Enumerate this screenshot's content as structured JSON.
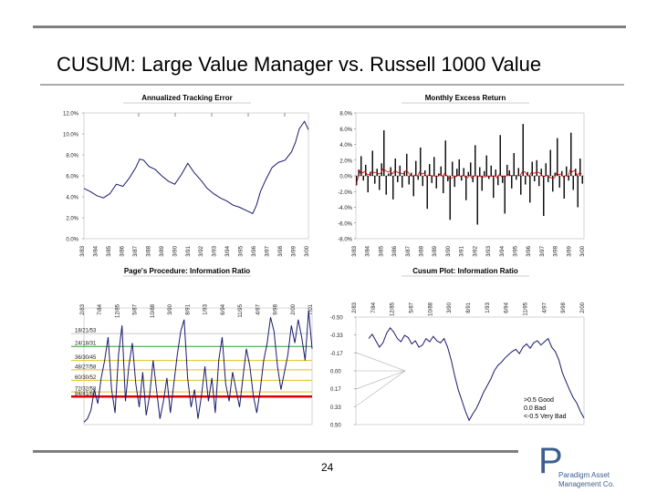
{
  "title": "CUSUM: Large Value Manager vs. Russell 1000 Value",
  "page_number": "24",
  "logo": {
    "line1": "Paradigm Asset",
    "line2": "Management Co."
  },
  "colors": {
    "rule": "#7f7f7f",
    "series": "#1a1a6e",
    "red": "#cc0000",
    "logo": "#3d5f8e"
  },
  "chart_data": [
    {
      "type": "line",
      "title": "Annualized Tracking Error",
      "yticks": [
        "12.0%",
        "10.0%",
        "8.0%",
        "6.0%",
        "4.0%",
        "2.0%",
        "0.0%"
      ],
      "ylim": [
        0,
        12
      ],
      "xticks": [
        "3/83",
        "3/84",
        "3/85",
        "3/86",
        "3/87",
        "3/88",
        "3/89",
        "3/90",
        "3/91",
        "3/92",
        "3/93",
        "3/94",
        "3/95",
        "3/96",
        "3/97",
        "3/98",
        "3/99",
        "3/00"
      ],
      "x": [
        0,
        0.5,
        1,
        1.5,
        2,
        2.5,
        3,
        3.5,
        4,
        4.3,
        4.6,
        5,
        5.5,
        6,
        6.5,
        7,
        7.5,
        8,
        8.5,
        9,
        9.5,
        10,
        10.5,
        11,
        11.5,
        12,
        12.5,
        13,
        13.3,
        13.6,
        14,
        14.5,
        15,
        15.5,
        16,
        16.3,
        16.6,
        17,
        17.3
      ],
      "values": [
        4.8,
        4.5,
        4.1,
        3.9,
        4.3,
        5.2,
        5.0,
        5.8,
        6.8,
        7.6,
        7.5,
        6.9,
        6.6,
        6.0,
        5.5,
        5.2,
        6.1,
        7.2,
        6.3,
        5.6,
        4.8,
        4.3,
        3.9,
        3.6,
        3.2,
        3.0,
        2.7,
        2.4,
        3.2,
        4.5,
        5.6,
        6.8,
        7.3,
        7.5,
        8.3,
        9.2,
        10.5,
        11.2,
        10.4
      ]
    },
    {
      "type": "bar",
      "title": "Monthly Excess Return",
      "yticks": [
        "8.0%",
        "6.0%",
        "4.0%",
        "2.0%",
        "0.0%",
        "-2.0%",
        "-4.0%",
        "-6.0%",
        "-8.0%"
      ],
      "ylim": [
        -8,
        8
      ],
      "xticks": [
        "3/83",
        "3/84",
        "3/85",
        "3/86",
        "3/87",
        "3/88",
        "3/89",
        "3/90",
        "3/91",
        "3/92",
        "3/93",
        "3/94",
        "3/95",
        "3/96",
        "3/97",
        "3/98",
        "3/99",
        "3/00"
      ],
      "x_range": [
        0,
        17.3
      ],
      "values": [
        -1.2,
        0.8,
        2.5,
        -0.6,
        1.4,
        -2.1,
        0.5,
        3.2,
        -1.0,
        0.9,
        -1.8,
        1.6,
        5.8,
        -2.4,
        0.3,
        1.1,
        -3.0,
        2.2,
        -0.8,
        1.3,
        -1.5,
        0.6,
        2.8,
        -1.1,
        0.4,
        -2.6,
        1.9,
        -0.5,
        3.6,
        -1.3,
        0.7,
        -4.2,
        1.5,
        -0.9,
        2.4,
        -1.6,
        0.3,
        1.2,
        -2.2,
        4.5,
        -0.7,
        -5.6,
        1.8,
        -1.4,
        0.9,
        2.1,
        -0.6,
        1.0,
        -3.1,
        0.5,
        1.7,
        -0.8,
        3.9,
        -6.2,
        1.1,
        -1.9,
        0.6,
        2.6,
        -0.4,
        1.3,
        -2.8,
        0.8,
        -1.2,
        5.2,
        -0.9,
        -4.8,
        1.4,
        0.7,
        -1.6,
        2.9,
        -0.5,
        1.0,
        -2.4,
        6.6,
        -1.1,
        0.5,
        -3.4,
        1.8,
        -0.7,
        2.0,
        -1.3,
        0.9,
        -5.1,
        1.6,
        -0.8,
        3.3,
        -2.0,
        0.4,
        4.8,
        -1.5,
        0.6,
        -2.9,
        1.2,
        -0.6,
        5.5,
        -1.8,
        0.9,
        -4.0,
        2.2,
        -1.0
      ]
    },
    {
      "type": "line",
      "title": "Page's Procedure: Information Ratio",
      "xticks": [
        "2/83",
        "7/84",
        "12/85",
        "5/87",
        "10/88",
        "3/90",
        "8/91",
        "1/93",
        "6/94",
        "11/95",
        "4/97",
        "9/98",
        "2/00",
        "7/01"
      ],
      "x_range": [
        0,
        13
      ],
      "ylim": [
        0,
        1
      ],
      "threshold_labels": [
        "18/21/53",
        "24/18/31",
        "36/30/45",
        "48/27/58",
        "60/30/52",
        "72/32/58",
        "84/41/66"
      ],
      "threshold_colors": [
        "#c8c8c8",
        "#2e9e2e",
        "#e0c020",
        "#e0c020",
        "#e0c020",
        "#e0c020",
        "#dd0000"
      ],
      "threshold_levels": [
        0.22,
        0.33,
        0.45,
        0.53,
        0.62,
        0.72,
        0.76
      ],
      "values": [
        0.02,
        0.05,
        0.12,
        0.3,
        0.18,
        0.4,
        0.55,
        0.75,
        0.3,
        0.1,
        0.6,
        0.85,
        0.2,
        0.5,
        0.7,
        0.35,
        0.15,
        0.45,
        0.08,
        0.25,
        0.55,
        0.3,
        0.05,
        0.2,
        0.4,
        0.1,
        0.35,
        0.6,
        0.8,
        0.9,
        0.4,
        0.15,
        0.3,
        0.05,
        0.25,
        0.5,
        0.2,
        0.4,
        0.1,
        0.55,
        0.75,
        0.35,
        0.2,
        0.45,
        0.3,
        0.15,
        0.4,
        0.65,
        0.5,
        0.25,
        0.1,
        0.3,
        0.55,
        0.7,
        0.92,
        0.8,
        0.5,
        0.3,
        0.45,
        0.6,
        0.85,
        0.7,
        0.9,
        0.75,
        0.55,
        0.98,
        0.65
      ]
    },
    {
      "type": "line",
      "title": "Cusum Plot: Information Ratio",
      "yticks": [
        "-0.50",
        "-0.33",
        "-0.17",
        "0.00",
        "0.17",
        "0.33",
        "0.50"
      ],
      "ylim": [
        -0.5,
        0.5
      ],
      "xticks": [
        "2/83",
        "7/84",
        "12/85",
        "5/87",
        "10/88",
        "3/90",
        "8/91",
        "1/93",
        "6/94",
        "11/95",
        "4/97",
        "9/98",
        "2/00"
      ],
      "x_range": [
        0,
        12.2
      ],
      "values": [
        -0.3,
        -0.34,
        -0.28,
        -0.22,
        -0.26,
        -0.35,
        -0.4,
        -0.36,
        -0.3,
        -0.27,
        -0.33,
        -0.31,
        -0.25,
        -0.28,
        -0.22,
        -0.24,
        -0.3,
        -0.27,
        -0.32,
        -0.28,
        -0.26,
        -0.3,
        -0.22,
        -0.1,
        0.05,
        0.18,
        0.28,
        0.38,
        0.46,
        0.4,
        0.35,
        0.28,
        0.2,
        0.14,
        0.08,
        0.0,
        -0.05,
        -0.08,
        -0.12,
        -0.15,
        -0.18,
        -0.2,
        -0.16,
        -0.22,
        -0.25,
        -0.21,
        -0.26,
        -0.28,
        -0.24,
        -0.27,
        -0.3,
        -0.22,
        -0.18,
        -0.1,
        0.02,
        0.1,
        0.18,
        0.25,
        0.3,
        0.38,
        0.44
      ],
      "legend": [
        ">0.5 Good",
        "0.0 Bad",
        "<-0.5 Very Bad"
      ]
    }
  ]
}
